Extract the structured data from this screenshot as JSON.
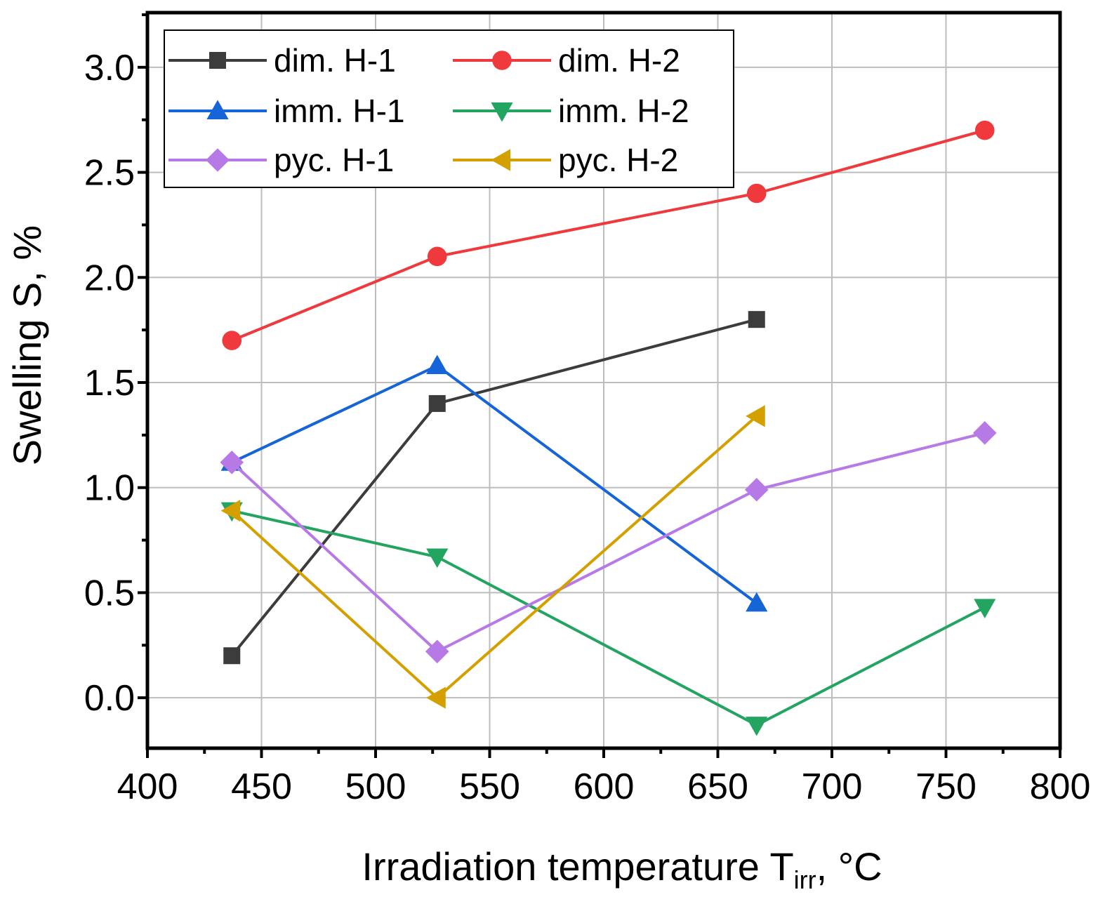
{
  "chart_data": {
    "type": "line",
    "title": "",
    "xlabel": "Irradiation temperature T",
    "xlabel_sub": "irr",
    "xlabel_suffix": ", °C",
    "ylabel": "Swelling S, %",
    "xlim": [
      400,
      800
    ],
    "ylim": [
      -0.24,
      3.26
    ],
    "xticks": [
      400,
      450,
      500,
      550,
      600,
      650,
      700,
      750,
      800
    ],
    "xtick_labels": [
      "400",
      "450",
      "500",
      "550",
      "600",
      "650",
      "700",
      "750",
      "800"
    ],
    "yticks": [
      0.0,
      0.5,
      1.0,
      1.5,
      2.0,
      2.5,
      3.0
    ],
    "ytick_labels": [
      "0.0",
      "0.5",
      "1.0",
      "1.5",
      "2.0",
      "2.5",
      "3.0"
    ],
    "grid": true,
    "legend_position": "top-left",
    "series": [
      {
        "name": "dim. H-1",
        "color": "#3c3c3c",
        "marker": "square",
        "x": [
          437,
          527,
          667
        ],
        "values": [
          0.2,
          1.4,
          1.8
        ]
      },
      {
        "name": "dim. H-2",
        "color": "#f0393c",
        "marker": "circle",
        "x": [
          437,
          527,
          667,
          767
        ],
        "values": [
          1.7,
          2.1,
          2.4,
          2.7
        ]
      },
      {
        "name": "imm. H-1",
        "color": "#1565d8",
        "marker": "triangle-up",
        "x": [
          437,
          527,
          667
        ],
        "values": [
          1.12,
          1.58,
          0.45
        ]
      },
      {
        "name": "imm. H-2",
        "color": "#23a461",
        "marker": "triangle-down",
        "x": [
          437,
          527,
          667,
          767
        ],
        "values": [
          0.89,
          0.67,
          -0.13,
          0.43
        ]
      },
      {
        "name": "pyc. H-1",
        "color": "#b679e6",
        "marker": "diamond",
        "x": [
          437,
          527,
          667,
          767
        ],
        "values": [
          1.12,
          0.22,
          0.99,
          1.26
        ]
      },
      {
        "name": "pyc. H-2",
        "color": "#d4a000",
        "marker": "triangle-left",
        "x": [
          437,
          527,
          667
        ],
        "values": [
          0.89,
          0.0,
          1.34
        ]
      }
    ]
  }
}
